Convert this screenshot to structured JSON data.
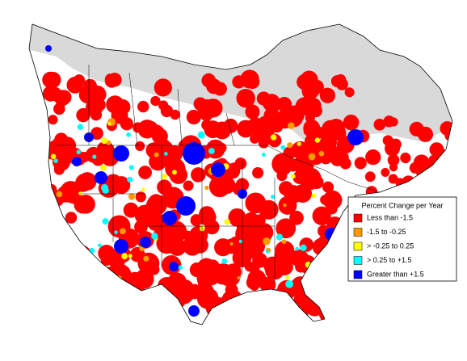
{
  "legend": {
    "title": "Percent Change per Year",
    "items": [
      {
        "label": "Less than -1.5",
        "color": "#ff0000"
      },
      {
        "label": "-1.5 to -0.25",
        "color": "#ff9900"
      },
      {
        "label": "> -0.25 to 0.25",
        "color": "#ffff00"
      },
      {
        "label": "> 0.25 to +1.5",
        "color": "#00ffff"
      },
      {
        "label": "Greater than +1.5",
        "color": "#0000ff"
      }
    ]
  }
}
